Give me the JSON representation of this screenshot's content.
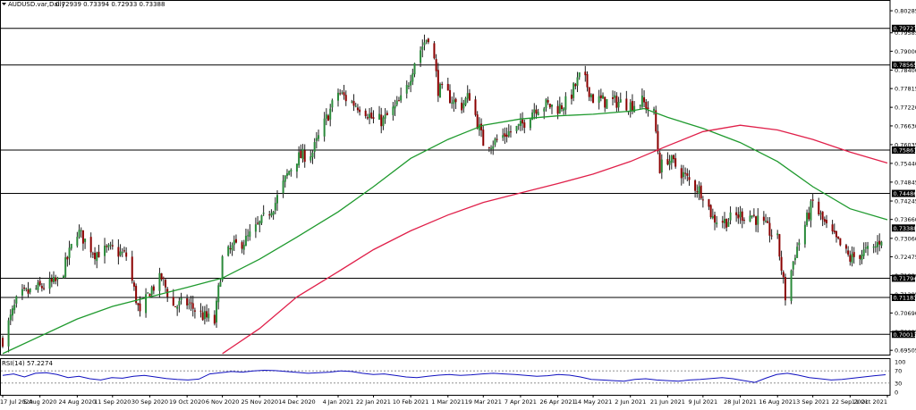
{
  "header": {
    "symbol": "AUDUSD.var,Daily",
    "ohlc": "0.72939 0.73394 0.72933 0.73388"
  },
  "rsi_header": {
    "label": "RSI(14) 57.2274"
  },
  "chart_data": [
    {
      "type": "candlestick",
      "title": "AUDUSD.var,Daily",
      "ohlc_last": {
        "open": 0.72939,
        "high": 0.73394,
        "low": 0.72933,
        "close": 0.73388
      },
      "ylim": [
        0.6934,
        0.804
      ],
      "y_ticks": [
        0.80285,
        0.79585,
        0.79,
        0.784,
        0.77815,
        0.7722,
        0.7663,
        0.76035,
        0.7544,
        0.74845,
        0.74245,
        0.7366,
        0.7306,
        0.72475,
        0.7188,
        0.71285,
        0.7069,
        0.70095,
        0.69505
      ],
      "x_ticks": [
        "17 Jul 2020",
        "5 Aug 2020",
        "24 Aug 2020",
        "11 Sep 2020",
        "30 Sep 2020",
        "19 Oct 2020",
        "6 Nov 2020",
        "25 Nov 2020",
        "14 Dec 2020",
        "4 Jan 2021",
        "22 Jan 2021",
        "10 Feb 2021",
        "1 Mar 2021",
        "19 Mar 2021",
        "7 Apr 2021",
        "26 Apr 2021",
        "14 May 2021",
        "2 Jun 2021",
        "21 Jun 2021",
        "9 Jul 2021",
        "28 Jul 2021",
        "16 Aug 2021",
        "3 Sep 2021",
        "22 Sep 2021",
        "11 Oct 2021"
      ],
      "horizontal_levels": [
        0.79727,
        0.78565,
        0.75861,
        0.74486,
        0.71794,
        0.71183,
        0.70013
      ],
      "last_price": 0.73388,
      "price_path": [
        [
          "17 Jul 2020",
          0.6985
        ],
        [
          "25 Jul 2020",
          0.712
        ],
        [
          "5 Aug 2020",
          0.715
        ],
        [
          "15 Aug 2020",
          0.717
        ],
        [
          "24 Aug 2020",
          0.733
        ],
        [
          "2 Sep 2020",
          0.726
        ],
        [
          "11 Sep 2020",
          0.727
        ],
        [
          "18 Sep 2020",
          0.725
        ],
        [
          "25 Sep 2020",
          0.706
        ],
        [
          "30 Sep 2020",
          0.714
        ],
        [
          "6 Oct 2020",
          0.718
        ],
        [
          "12 Oct 2020",
          0.709
        ],
        [
          "19 Oct 2020",
          0.71
        ],
        [
          "27 Oct 2020",
          0.706
        ],
        [
          "2 Nov 2020",
          0.704
        ],
        [
          "6 Nov 2020",
          0.724
        ],
        [
          "12 Nov 2020",
          0.728
        ],
        [
          "18 Nov 2020",
          0.73
        ],
        [
          "25 Nov 2020",
          0.735
        ],
        [
          "3 Dec 2020",
          0.742
        ],
        [
          "10 Dec 2020",
          0.752
        ],
        [
          "14 Dec 2020",
          0.756
        ],
        [
          "22 Dec 2020",
          0.758
        ],
        [
          "30 Dec 2020",
          0.77
        ],
        [
          "4 Jan 2021",
          0.777
        ],
        [
          "10 Jan 2021",
          0.774
        ],
        [
          "17 Jan 2021",
          0.772
        ],
        [
          "22 Jan 2021",
          0.768
        ],
        [
          "27 Jan 2021",
          0.768
        ],
        [
          "2 Feb 2021",
          0.772
        ],
        [
          "7 Feb 2021",
          0.776
        ],
        [
          "12 Feb 2021",
          0.787
        ],
        [
          "17 Feb 2021",
          0.793
        ],
        [
          "20 Feb 2021",
          0.796
        ],
        [
          "24 Feb 2021",
          0.778
        ],
        [
          "1 Mar 2021",
          0.776
        ],
        [
          "7 Mar 2021",
          0.772
        ],
        [
          "12 Mar 2021",
          0.776
        ],
        [
          "19 Mar 2021",
          0.761
        ],
        [
          "24 Mar 2021",
          0.761
        ],
        [
          "31 Mar 2021",
          0.764
        ],
        [
          "7 Apr 2021",
          0.766
        ],
        [
          "14 Apr 2021",
          0.772
        ],
        [
          "20 Apr 2021",
          0.773
        ],
        [
          "26 Apr 2021",
          0.772
        ],
        [
          "1 May 2021",
          0.774
        ],
        [
          "8 May 2021",
          0.783
        ],
        [
          "14 May 2021",
          0.775
        ],
        [
          "20 May 2021",
          0.774
        ],
        [
          "26 May 2021",
          0.774
        ],
        [
          "2 Jun 2021",
          0.773
        ],
        [
          "8 Jun 2021",
          0.774
        ],
        [
          "14 Jun 2021",
          0.77
        ],
        [
          "17 Jun 2021",
          0.753
        ],
        [
          "21 Jun 2021",
          0.756
        ],
        [
          "26 Jun 2021",
          0.753
        ],
        [
          "3 Jul 2021",
          0.748
        ],
        [
          "9 Jul 2021",
          0.745
        ],
        [
          "14 Jul 2021",
          0.737
        ],
        [
          "20 Jul 2021",
          0.736
        ],
        [
          "28 Jul 2021",
          0.738
        ],
        [
          "3 Aug 2021",
          0.738
        ],
        [
          "10 Aug 2021",
          0.734
        ],
        [
          "16 Aug 2021",
          0.73
        ],
        [
          "20 Aug 2021",
          0.712
        ],
        [
          "25 Aug 2021",
          0.726
        ],
        [
          "3 Sep 2021",
          0.742
        ],
        [
          "10 Sep 2021",
          0.734
        ],
        [
          "16 Sep 2021",
          0.729
        ],
        [
          "22 Sep 2021",
          0.724
        ],
        [
          "28 Sep 2021",
          0.726
        ],
        [
          "4 Oct 2021",
          0.727
        ],
        [
          "11 Oct 2021",
          0.7339
        ]
      ],
      "ma_fast": [
        [
          "17 Jul 2020",
          0.694
        ],
        [
          "24 Aug 2020",
          0.705
        ],
        [
          "11 Sep 2020",
          0.709
        ],
        [
          "30 Sep 2020",
          0.712
        ],
        [
          "19 Oct 2020",
          0.715
        ],
        [
          "6 Nov 2020",
          0.718
        ],
        [
          "25 Nov 2020",
          0.724
        ],
        [
          "14 Dec 2020",
          0.731
        ],
        [
          "4 Jan 2021",
          0.739
        ],
        [
          "22 Jan 2021",
          0.747
        ],
        [
          "10 Feb 2021",
          0.756
        ],
        [
          "1 Mar 2021",
          0.762
        ],
        [
          "19 Mar 2021",
          0.7665
        ],
        [
          "7 Apr 2021",
          0.7685
        ],
        [
          "26 Apr 2021",
          0.7695
        ],
        [
          "14 May 2021",
          0.77
        ],
        [
          "2 Jun 2021",
          0.771
        ],
        [
          "9 Jun 2021",
          0.7718
        ],
        [
          "21 Jun 2021",
          0.769
        ],
        [
          "9 Jul 2021",
          0.7655
        ],
        [
          "28 Jul 2021",
          0.761
        ],
        [
          "16 Aug 2021",
          0.755
        ],
        [
          "3 Sep 2021",
          0.747
        ],
        [
          "22 Sep 2021",
          0.74
        ],
        [
          "11 Oct 2021",
          0.7365
        ]
      ],
      "ma_slow": [
        [
          "6 Nov 2020",
          0.694
        ],
        [
          "25 Nov 2020",
          0.702
        ],
        [
          "14 Dec 2020",
          0.712
        ],
        [
          "4 Jan 2021",
          0.72
        ],
        [
          "22 Jan 2021",
          0.727
        ],
        [
          "10 Feb 2021",
          0.733
        ],
        [
          "1 Mar 2021",
          0.738
        ],
        [
          "19 Mar 2021",
          0.742
        ],
        [
          "7 Apr 2021",
          0.745
        ],
        [
          "26 Apr 2021",
          0.748
        ],
        [
          "14 May 2021",
          0.751
        ],
        [
          "2 Jun 2021",
          0.755
        ],
        [
          "21 Jun 2021",
          0.76
        ],
        [
          "9 Jul 2021",
          0.7645
        ],
        [
          "28 Jul 2021",
          0.7665
        ],
        [
          "16 Aug 2021",
          0.765
        ],
        [
          "3 Sep 2021",
          0.762
        ],
        [
          "22 Sep 2021",
          0.758
        ],
        [
          "11 Oct 2021",
          0.7545
        ]
      ],
      "colors": {
        "bull": "#2a8a3a",
        "bear": "#8b0000",
        "wick": "#1f1f1f",
        "ma_fast": "#1f9a2e",
        "ma_slow": "#e0204a",
        "level_line": "#000000",
        "price_tag": "#000000"
      }
    },
    {
      "type": "line",
      "title": "RSI(14) 57.2274",
      "ylim": [
        0,
        100
      ],
      "y_ticks": [
        100,
        70,
        30,
        0
      ],
      "levels": [
        70,
        30
      ],
      "last_value": 57.2274,
      "series": [
        {
          "values": [
            55,
            60,
            50,
            62,
            64,
            58,
            48,
            52,
            44,
            40,
            48,
            46,
            52,
            55,
            50,
            45,
            42,
            40,
            43,
            60,
            64,
            68,
            66,
            70,
            72,
            71,
            68,
            65,
            62,
            64,
            66,
            70,
            68,
            62,
            58,
            60,
            55,
            50,
            48,
            52,
            56,
            58,
            55,
            57,
            60,
            62,
            60,
            58,
            55,
            52,
            54,
            58,
            56,
            50,
            42,
            40,
            38,
            36,
            42,
            44,
            40,
            38,
            36,
            40,
            42,
            45,
            48,
            44,
            38,
            32,
            46,
            58,
            62,
            56,
            48,
            44,
            40,
            42,
            46,
            50,
            54,
            57.2274
          ]
        }
      ],
      "colors": {
        "line": "#1010c0",
        "level": "#808080"
      }
    }
  ]
}
